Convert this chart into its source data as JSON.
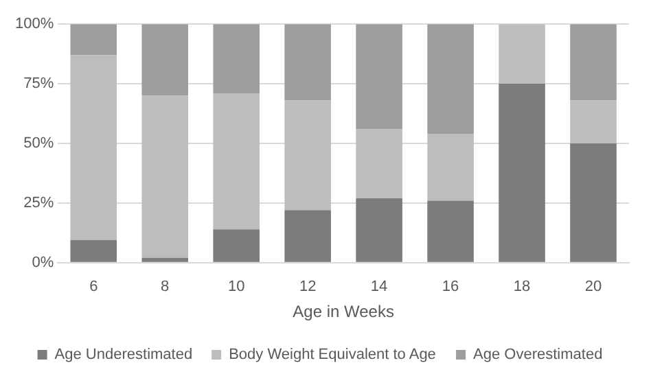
{
  "chart_data": {
    "type": "bar",
    "stacked": true,
    "xlabel": "Age in Weeks",
    "categories": [
      "6",
      "8",
      "10",
      "12",
      "14",
      "16",
      "18",
      "20"
    ],
    "series": [
      {
        "name": "Age Underestimated",
        "color": "#7b7c7e",
        "values": [
          9.5,
          2,
          14,
          22,
          27,
          26,
          75,
          50
        ]
      },
      {
        "name": "Body Weight Equivalent to Age",
        "color": "#bcbdbf",
        "values": [
          77.5,
          68,
          57,
          46,
          29,
          28,
          25,
          18
        ]
      },
      {
        "name": "Age Overestimated",
        "color": "#9d9ea0",
        "values": [
          13,
          30,
          29,
          32,
          44,
          46,
          0,
          32
        ]
      }
    ],
    "ylim": [
      0,
      100
    ],
    "yticks": [
      {
        "value": 0,
        "label": "0%"
      },
      {
        "value": 25,
        "label": "25%"
      },
      {
        "value": 50,
        "label": "50%"
      },
      {
        "value": 75,
        "label": "75%"
      },
      {
        "value": 100,
        "label": "100%"
      }
    ],
    "grid": "y",
    "legend": "bottom"
  }
}
